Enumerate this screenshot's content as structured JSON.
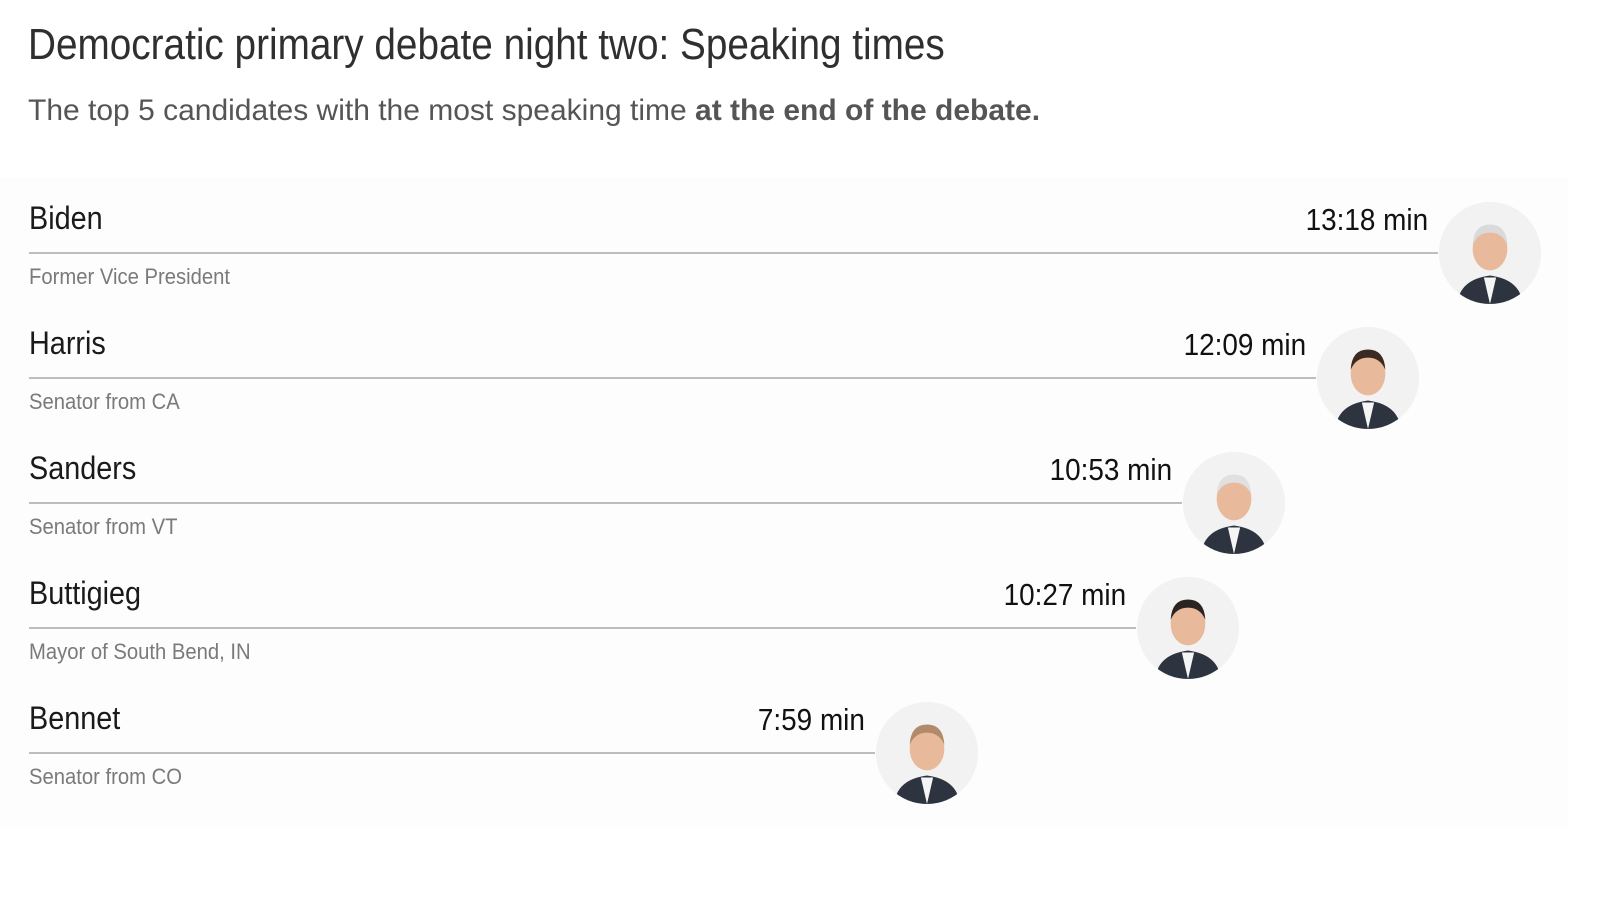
{
  "header": {
    "title": "Democratic primary debate night two: Speaking times",
    "subtitle_regular": "The top 5 candidates with the most speaking time ",
    "subtitle_bold": "at the end of the debate."
  },
  "chart_data": {
    "type": "bar",
    "title": "Democratic primary debate night two: Speaking times",
    "subtitle": "The top 5 candidates with the most speaking time at the end of the debate.",
    "unit": "min",
    "categories": [
      "Biden",
      "Harris",
      "Sanders",
      "Buttigieg",
      "Bennet"
    ],
    "series": [
      {
        "values": [
          13.3,
          12.15,
          10.883,
          10.45,
          7.983
        ]
      }
    ],
    "bars": [
      {
        "name": "Biden",
        "role": "Former Vice President",
        "time_label": "13:18 min",
        "seconds": 798,
        "photo": "biden-photo"
      },
      {
        "name": "Harris",
        "role": "Senator from CA",
        "time_label": "12:09 min",
        "seconds": 729,
        "photo": "harris-photo"
      },
      {
        "name": "Sanders",
        "role": "Senator from VT",
        "time_label": "10:53 min",
        "seconds": 653,
        "photo": "sanders-photo"
      },
      {
        "name": "Buttigieg",
        "role": "Mayor of South Bend, IN",
        "time_label": "10:27 min",
        "seconds": 627,
        "photo": "buttigieg-photo"
      },
      {
        "name": "Bennet",
        "role": "Senator from CO",
        "time_label": "7:59 min",
        "seconds": 479,
        "photo": "bennet-photo"
      }
    ],
    "legend": "none",
    "grid": false,
    "colors": {
      "line": "#bdbdbd",
      "name": "#1a1a1a",
      "role": "#7a7a7a"
    }
  }
}
